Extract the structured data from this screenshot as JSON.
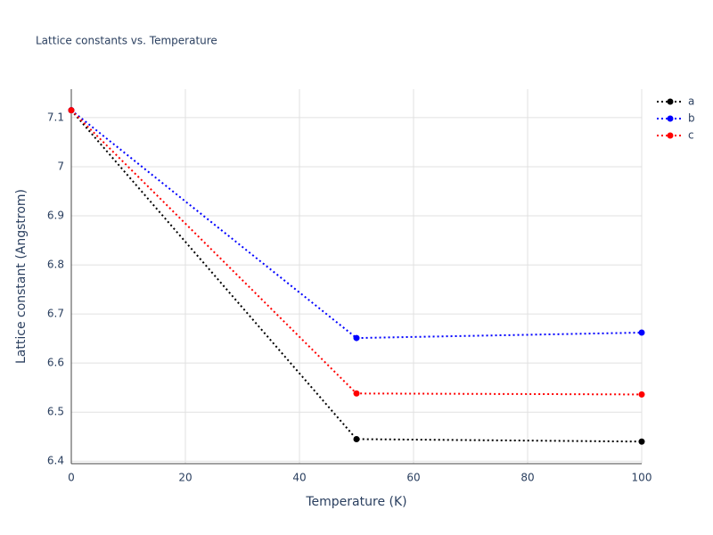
{
  "chart_data": {
    "type": "line",
    "title": "Lattice constants vs. Temperature",
    "x_label": "Temperature (K)",
    "y_label": "Lattice constant (Angstrom)",
    "x": [
      0,
      50,
      100
    ],
    "series": [
      {
        "name": "a",
        "color": "#000000",
        "values": [
          7.115,
          6.445,
          6.44
        ]
      },
      {
        "name": "b",
        "color": "#0000ff",
        "values": [
          7.115,
          6.651,
          6.662
        ]
      },
      {
        "name": "c",
        "color": "#ff0000",
        "values": [
          7.115,
          6.538,
          6.536
        ]
      }
    ],
    "xlim": [
      0,
      100
    ],
    "xticks": [
      0,
      20,
      40,
      60,
      80,
      100
    ],
    "ylim": [
      6.395,
      7.158
    ],
    "yticks": [
      6.4,
      6.5,
      6.6,
      6.7,
      6.8,
      6.9,
      7,
      7.1
    ],
    "grid": true,
    "legend": "top-right"
  }
}
